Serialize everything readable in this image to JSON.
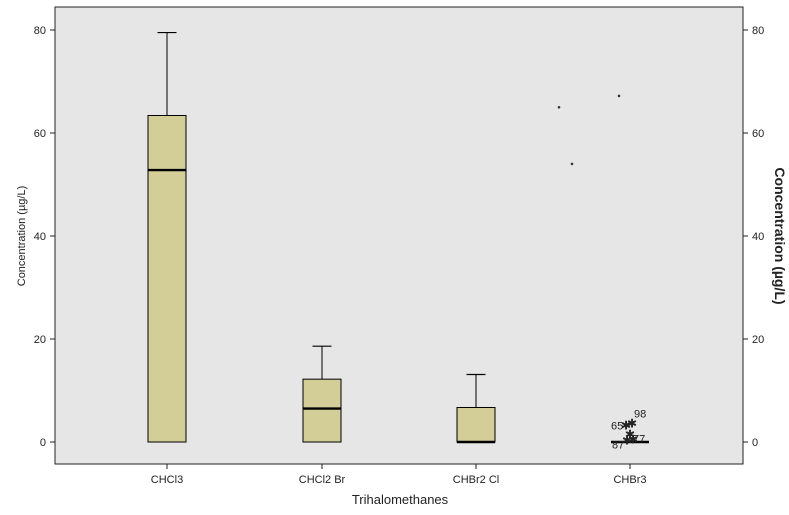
{
  "colors": {
    "plot_background": "#e6e6e6",
    "box_fill": "#d3cd98",
    "box_stroke": "#000000",
    "text": "#222222"
  },
  "chart_data": {
    "type": "box",
    "xlabel": "Trihalomethanes",
    "ylabel_left": "Concentration (µg/L)",
    "ylabel_right": "Concentration (µg/L)",
    "ylim": [
      -4,
      84
    ],
    "y_ticks": [
      0,
      20,
      40,
      60,
      80
    ],
    "grid": false,
    "categories": [
      "CHCl3",
      "CHCl2 Br",
      "CHBr2 Cl",
      "CHBr3"
    ],
    "boxes": [
      {
        "category": "CHCl3",
        "min": 0,
        "q1": 0,
        "median": 52.8,
        "q3": 63.4,
        "max": 79.5
      },
      {
        "category": "CHCl2 Br",
        "min": 0,
        "q1": 0,
        "median": 6.5,
        "q3": 12.2,
        "max": 18.6
      },
      {
        "category": "CHBr2 Cl",
        "min": 0,
        "q1": 0,
        "median": 0,
        "q3": 6.7,
        "max": 13.1
      },
      {
        "category": "CHBr3",
        "min": 0,
        "q1": 0,
        "median": 0,
        "q3": 0,
        "max": 0
      }
    ],
    "outliers": [
      {
        "category": "CHBr3",
        "value": 3.2,
        "label": "65",
        "marker": "star"
      },
      {
        "category": "CHBr3",
        "value": 3.6,
        "label": "98",
        "marker": "star"
      },
      {
        "category": "CHBr3",
        "value": 1.5,
        "label": "",
        "marker": "star"
      },
      {
        "category": "CHBr3",
        "value": 0.5,
        "label": "77",
        "marker": "star"
      },
      {
        "category": "CHBr3",
        "value": 0.3,
        "label": "87",
        "marker": "star"
      },
      {
        "category": "CHBr3",
        "value": 65,
        "label": "",
        "marker": "dot"
      },
      {
        "category": "CHBr3",
        "value": 54,
        "label": "",
        "marker": "dot"
      },
      {
        "category": "CHBr3",
        "value": 67.2,
        "label": "",
        "marker": "dot"
      }
    ]
  }
}
